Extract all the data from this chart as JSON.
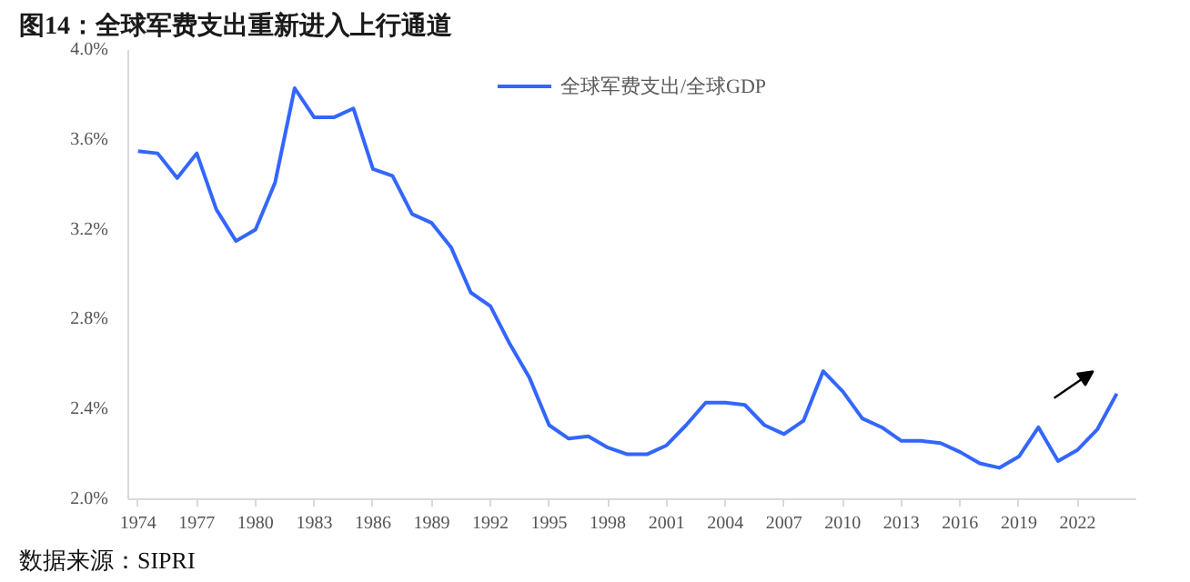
{
  "chart_data": {
    "type": "line",
    "title": "图14：全球军费支出重新进入上行通道",
    "annotations": [
      "数据来源：SIPRI"
    ],
    "x": [
      1974,
      1975,
      1976,
      1977,
      1978,
      1979,
      1980,
      1981,
      1982,
      1983,
      1984,
      1985,
      1986,
      1987,
      1988,
      1989,
      1990,
      1991,
      1992,
      1993,
      1994,
      1995,
      1996,
      1997,
      1998,
      1999,
      2000,
      2001,
      2002,
      2003,
      2004,
      2005,
      2006,
      2007,
      2008,
      2009,
      2010,
      2011,
      2012,
      2013,
      2014,
      2015,
      2016,
      2017,
      2018,
      2019,
      2020,
      2021,
      2022,
      2023,
      2024
    ],
    "series": [
      {
        "name": "全球军费支出/全球GDP",
        "color": "#3366ff",
        "values": [
          3.55,
          3.54,
          3.43,
          3.54,
          3.29,
          3.15,
          3.2,
          3.41,
          3.83,
          3.7,
          3.7,
          3.74,
          3.47,
          3.44,
          3.27,
          3.23,
          3.12,
          2.92,
          2.86,
          2.69,
          2.54,
          2.33,
          2.27,
          2.28,
          2.23,
          2.2,
          2.2,
          2.24,
          2.33,
          2.43,
          2.43,
          2.42,
          2.33,
          2.29,
          2.35,
          2.57,
          2.48,
          2.36,
          2.32,
          2.26,
          2.26,
          2.25,
          2.21,
          2.16,
          2.14,
          2.19,
          2.32,
          2.17,
          2.22,
          2.31,
          2.47
        ]
      }
    ],
    "xlim": [
      1973.5,
      2025
    ],
    "xticks": [
      1974,
      1977,
      1980,
      1983,
      1986,
      1989,
      1992,
      1995,
      1998,
      2001,
      2004,
      2007,
      2010,
      2013,
      2016,
      2019,
      2022
    ],
    "ylim": [
      2.0,
      4.0
    ],
    "yticks": [
      {
        "value": 2.0,
        "label": "2.0%"
      },
      {
        "value": 2.4,
        "label": "2.4%"
      },
      {
        "value": 2.8,
        "label": "2.8%"
      },
      {
        "value": 3.2,
        "label": "3.2%"
      },
      {
        "value": 3.6,
        "label": "3.6%"
      },
      {
        "value": 4.0,
        "label": "4.0%"
      }
    ],
    "grid": false,
    "legend": "top",
    "marker": "none",
    "line_style": "solid"
  }
}
